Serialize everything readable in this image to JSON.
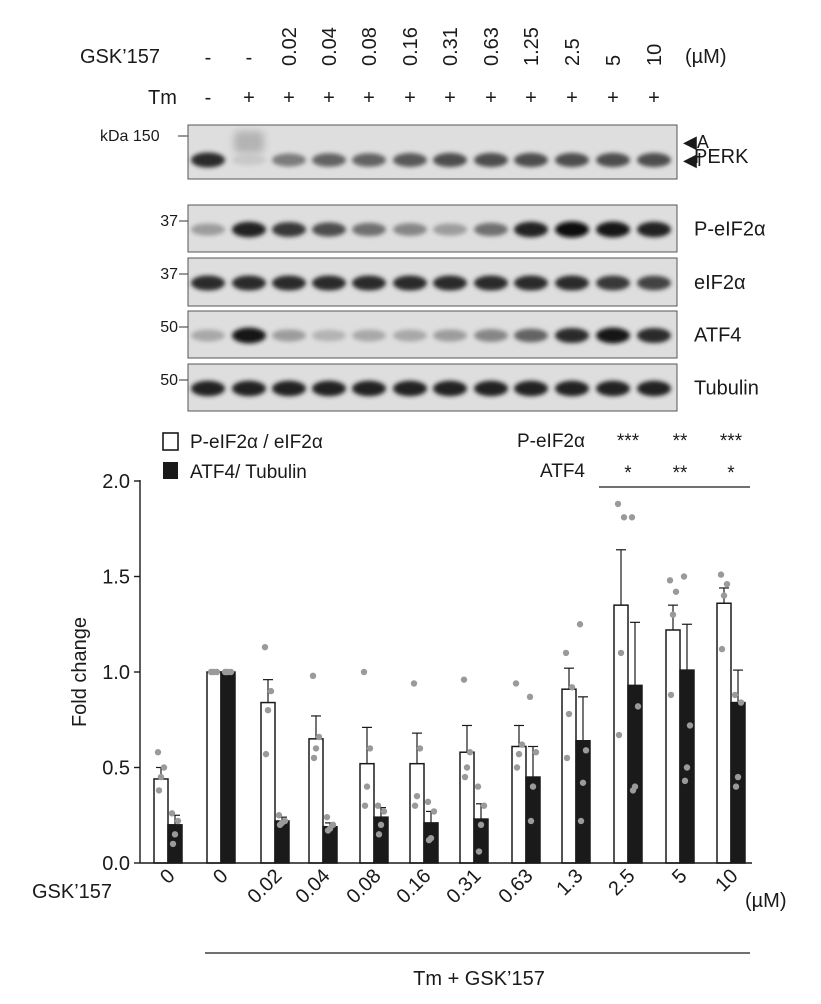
{
  "blot": {
    "gsk_label": "GSK’157",
    "tm_label": "Tm",
    "unit": "(µM)",
    "gsk_doses": [
      "-",
      "-",
      "0.02",
      "0.04",
      "0.08",
      "0.16",
      "0.31",
      "0.63",
      "1.25",
      "2.5",
      "5",
      "10"
    ],
    "tm_signs": [
      "-",
      "+",
      "+",
      "+",
      "+",
      "+",
      "+",
      "+",
      "+",
      "+",
      "+",
      "+"
    ],
    "kda_label": "kDa 150",
    "perk_markers": [
      "A",
      "I"
    ],
    "panels": [
      {
        "name": "PERK",
        "marker": "",
        "intensity": [
          0.85,
          0.15,
          0.5,
          0.6,
          0.6,
          0.65,
          0.7,
          0.7,
          0.7,
          0.7,
          0.7,
          0.7
        ],
        "upper_band": [
          0,
          0.25,
          0,
          0,
          0,
          0,
          0,
          0,
          0,
          0,
          0,
          0
        ]
      },
      {
        "name": "P-eIF2α",
        "marker": "37",
        "intensity": [
          0.35,
          0.9,
          0.8,
          0.7,
          0.55,
          0.45,
          0.35,
          0.55,
          0.9,
          1.0,
          0.95,
          0.9
        ],
        "upper_band": []
      },
      {
        "name": "eIF2α",
        "marker": "37",
        "intensity": [
          0.85,
          0.85,
          0.85,
          0.85,
          0.85,
          0.85,
          0.85,
          0.85,
          0.85,
          0.85,
          0.8,
          0.75
        ],
        "upper_band": []
      },
      {
        "name": "ATF4",
        "marker": "50",
        "intensity": [
          0.3,
          0.95,
          0.35,
          0.25,
          0.3,
          0.3,
          0.35,
          0.45,
          0.6,
          0.85,
          0.95,
          0.85
        ],
        "upper_band": []
      },
      {
        "name": "Tubulin",
        "marker": "50",
        "intensity": [
          0.9,
          0.9,
          0.9,
          0.9,
          0.9,
          0.9,
          0.9,
          0.9,
          0.9,
          0.9,
          0.9,
          0.9
        ],
        "upper_band": []
      }
    ]
  },
  "chart_data": {
    "type": "bar",
    "ylabel": "Fold change",
    "xlabel_row": "GSK’157",
    "x_unit": "(µM)",
    "bracket_label": "Tm + GSK’157",
    "categories": [
      "0",
      "0",
      "0.02",
      "0.04",
      "0.08",
      "0.16",
      "0.31",
      "0.63",
      "1.3",
      "2.5",
      "5",
      "10"
    ],
    "ylim": [
      0,
      2.0
    ],
    "yticks": [
      "0.0",
      "0.5",
      "1.0",
      "1.5",
      "2.0"
    ],
    "series": [
      {
        "name": "P-eIF2α / eIF2α",
        "color": "#ffffff",
        "values": [
          0.44,
          1.0,
          0.84,
          0.65,
          0.52,
          0.52,
          0.58,
          0.61,
          0.91,
          1.35,
          1.22,
          1.36
        ],
        "errors": [
          0.06,
          0.0,
          0.12,
          0.12,
          0.19,
          0.16,
          0.14,
          0.11,
          0.11,
          0.29,
          0.13,
          0.08
        ],
        "points": [
          [
            0.58,
            0.5,
            0.45,
            0.38
          ],
          [
            1.0,
            1.0,
            1.0,
            1.0
          ],
          [
            1.13,
            0.9,
            0.8,
            0.57
          ],
          [
            0.98,
            0.66,
            0.6,
            0.55
          ],
          [
            1.0,
            0.6,
            0.4,
            0.3
          ],
          [
            0.94,
            0.6,
            0.35,
            0.3
          ],
          [
            0.96,
            0.58,
            0.5,
            0.45
          ],
          [
            0.94,
            0.62,
            0.57,
            0.5
          ],
          [
            1.1,
            0.92,
            0.78,
            0.55
          ],
          [
            1.88,
            1.81,
            1.1,
            0.67
          ],
          [
            1.48,
            1.42,
            1.3,
            0.88
          ],
          [
            1.51,
            1.46,
            1.4,
            1.12
          ]
        ]
      },
      {
        "name": "ATF4/ Tubulin",
        "color": "#1a1a1a",
        "values": [
          0.2,
          1.0,
          0.22,
          0.19,
          0.24,
          0.21,
          0.23,
          0.45,
          0.64,
          0.93,
          1.01,
          0.84
        ],
        "errors": [
          0.05,
          0.0,
          0.02,
          0.02,
          0.05,
          0.06,
          0.08,
          0.16,
          0.23,
          0.33,
          0.24,
          0.17
        ],
        "points": [
          [
            0.26,
            0.22,
            0.15,
            0.1
          ],
          [
            1.0,
            1.0,
            1.0,
            1.0
          ],
          [
            0.25,
            0.22,
            0.21,
            0.2
          ],
          [
            0.24,
            0.2,
            0.18,
            0.17
          ],
          [
            0.3,
            0.27,
            0.2,
            0.15
          ],
          [
            0.32,
            0.27,
            0.13,
            0.12
          ],
          [
            0.4,
            0.3,
            0.2,
            0.06
          ],
          [
            0.87,
            0.58,
            0.4,
            0.22
          ],
          [
            1.25,
            0.59,
            0.42,
            0.22
          ],
          [
            1.81,
            0.82,
            0.4,
            0.38
          ],
          [
            1.5,
            0.72,
            0.5,
            0.43
          ],
          [
            0.88,
            0.84,
            0.45,
            0.4
          ]
        ]
      }
    ],
    "significance": {
      "rows": [
        {
          "label": "P-eIF2α",
          "marks": [
            "***",
            "**",
            "***"
          ]
        },
        {
          "label": "ATF4",
          "marks": [
            "*",
            "**",
            "*"
          ]
        }
      ],
      "category_indices": [
        9,
        10,
        11
      ]
    }
  }
}
